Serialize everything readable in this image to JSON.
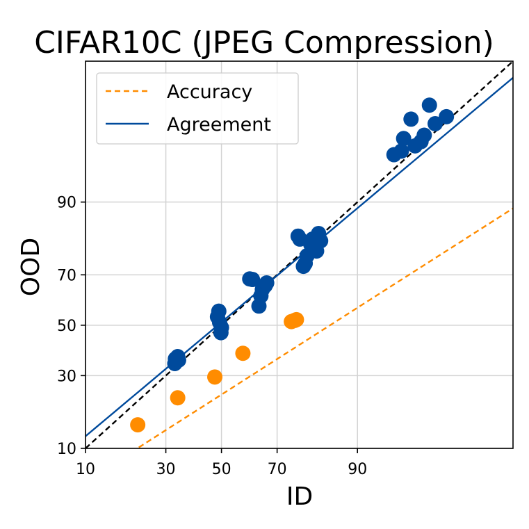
{
  "chart_data": {
    "type": "scatter",
    "title": "CIFAR10C (JPEG Compression)",
    "xlabel": "ID",
    "ylabel": "OOD",
    "scale": "probit",
    "xlim": [
      10,
      99.7
    ],
    "ylim": [
      10,
      99.7
    ],
    "xticks": [
      10,
      30,
      50,
      70,
      90
    ],
    "yticks": [
      10,
      30,
      50,
      70,
      90
    ],
    "grid": true,
    "legend_position": "top-left",
    "legend": [
      {
        "label": "Accuracy",
        "style": "dashed",
        "color": "#ff8c00"
      },
      {
        "label": "Agreement",
        "style": "solid",
        "color": "#004a9c"
      }
    ],
    "diagonal": {
      "style": "dashed",
      "color": "#000000"
    },
    "series": [
      {
        "name": "Agreement",
        "color": "#004a9c",
        "fit_line": [
          [
            10,
            12.4
          ],
          [
            99.7,
            99.5
          ]
        ],
        "points": [
          [
            33.0,
            34.5
          ],
          [
            33.2,
            36.3
          ],
          [
            34.0,
            37.2
          ],
          [
            34.3,
            35.8
          ],
          [
            48.5,
            53.5
          ],
          [
            49.0,
            55.8
          ],
          [
            49.3,
            51.2
          ],
          [
            50.0,
            49.0
          ],
          [
            49.8,
            46.9
          ],
          [
            60.5,
            68.5
          ],
          [
            61.5,
            68.3
          ],
          [
            63.8,
            57.9
          ],
          [
            64.5,
            62.0
          ],
          [
            65.0,
            64.5
          ],
          [
            66.0,
            66.0
          ],
          [
            66.5,
            67.0
          ],
          [
            76.5,
            82.3
          ],
          [
            77.0,
            81.5
          ],
          [
            78.0,
            73.0
          ],
          [
            78.5,
            74.0
          ],
          [
            79.0,
            76.5
          ],
          [
            80.0,
            80.0
          ],
          [
            80.5,
            81.5
          ],
          [
            81.0,
            79.5
          ],
          [
            81.5,
            78.0
          ],
          [
            82.0,
            83.0
          ],
          [
            82.5,
            81.0
          ],
          [
            94.8,
            96.2
          ],
          [
            95.5,
            96.5
          ],
          [
            95.7,
            97.4
          ],
          [
            96.3,
            98.4
          ],
          [
            96.6,
            96.9
          ],
          [
            97.0,
            97.2
          ],
          [
            97.2,
            97.6
          ],
          [
            97.5,
            98.9
          ],
          [
            97.8,
            98.2
          ],
          [
            98.3,
            98.5
          ]
        ]
      },
      {
        "name": "Accuracy",
        "color": "#ff8c00",
        "fit_line": [
          [
            10,
            5.2
          ],
          [
            99.7,
            88.8
          ]
        ],
        "points": [
          [
            21.5,
            15.0
          ],
          [
            34.0,
            22.5
          ],
          [
            47.5,
            29.5
          ],
          [
            58.0,
            38.5
          ],
          [
            74.5,
            51.5
          ],
          [
            75.5,
            52.0
          ],
          [
            76.0,
            52.3
          ]
        ]
      }
    ]
  }
}
